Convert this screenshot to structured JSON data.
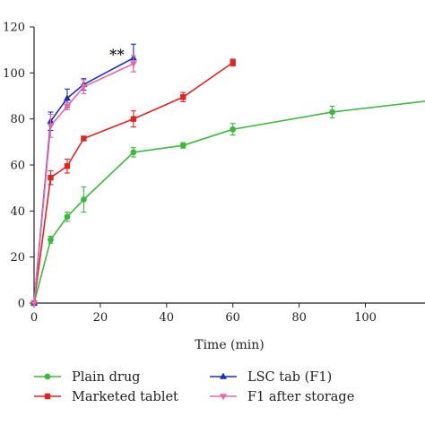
{
  "chart_data": {
    "type": "line",
    "title": "",
    "xlabel": "Time (min)",
    "ylabel": "",
    "xlim": [
      0,
      118
    ],
    "ylim": [
      0,
      120
    ],
    "x_ticks": [
      0,
      20,
      40,
      60,
      80,
      100
    ],
    "y_ticks": [
      0,
      20,
      40,
      60,
      80,
      100,
      120
    ],
    "grid": false,
    "legend_position": "bottom",
    "annotation": {
      "text": "**",
      "x": 25,
      "y": 106
    },
    "series": [
      {
        "name": "Plain drug",
        "color": "#3cb93c",
        "marker": "circle",
        "x": [
          0,
          5,
          10,
          15,
          30,
          45,
          60,
          90,
          120
        ],
        "y": [
          0,
          27.5,
          37.5,
          45,
          65.5,
          68.5,
          75.5,
          83,
          88
        ],
        "err": [
          0,
          1.5,
          2,
          5.5,
          2,
          1.2,
          2.5,
          2.5,
          0
        ]
      },
      {
        "name": "Marketed tablet",
        "color": "#e02424",
        "marker": "square",
        "x": [
          0,
          5,
          10,
          15,
          30,
          45,
          60
        ],
        "y": [
          0,
          54.5,
          59.5,
          71.5,
          80,
          89.5,
          104.5
        ],
        "err": [
          0,
          3,
          3,
          0.8,
          3.5,
          2,
          1.5
        ]
      },
      {
        "name": "LSC tab (F1)",
        "color": "#1a2fb8",
        "marker": "triangle-up",
        "x": [
          0,
          5,
          10,
          15,
          30
        ],
        "y": [
          0,
          79,
          89,
          95,
          106.5
        ],
        "err": [
          0,
          4,
          4,
          2.5,
          6
        ]
      },
      {
        "name": "F1 after storage",
        "color": "#e06aa8",
        "marker": "triangle-down",
        "x": [
          0,
          5,
          10,
          15,
          30
        ],
        "y": [
          0,
          77,
          85.5,
          94,
          104
        ],
        "err": [
          0,
          5,
          1.5,
          3,
          3.5
        ]
      }
    ]
  }
}
